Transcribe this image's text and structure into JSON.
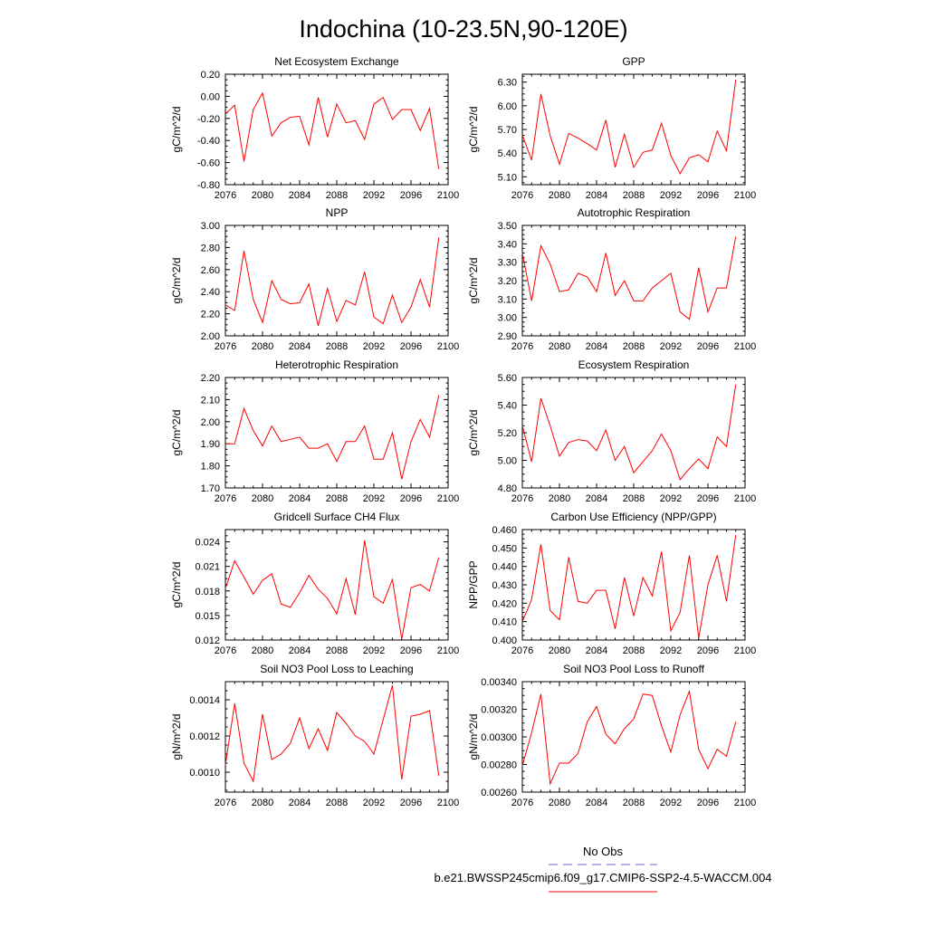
{
  "title": "Indochina (10-23.5N,90-120E)",
  "colors": {
    "series": "#ff0000",
    "obs": "#6666cc",
    "axis": "#000000"
  },
  "legend": {
    "obs_label": "No Obs",
    "model_label": "b.e21.BWSSP245cmip6.f09_g17.CMIP6-SSP2-4.5-WACCM.004"
  },
  "chart_data": [
    {
      "type": "line",
      "title": "Net Ecosystem Exchange",
      "ylabel": "gC/m^2/d",
      "xlim": [
        2076,
        2100
      ],
      "ylim": [
        -0.8,
        0.2
      ],
      "xticks": [
        2076,
        2080,
        2084,
        2088,
        2092,
        2096,
        2100
      ],
      "xtick_labels": [
        "2076",
        "2080",
        "2084",
        "2088",
        "2092",
        "2096",
        "2100"
      ],
      "yticks": [
        -0.8,
        -0.6,
        -0.4,
        -0.2,
        0.0,
        0.2
      ],
      "ytick_labels": [
        "-0.80",
        "-0.60",
        "-0.40",
        "-0.20",
        "0.00",
        "0.20"
      ],
      "x": [
        2076,
        2077,
        2078,
        2079,
        2080,
        2081,
        2082,
        2083,
        2084,
        2085,
        2086,
        2087,
        2088,
        2089,
        2090,
        2091,
        2092,
        2093,
        2094,
        2095,
        2096,
        2097,
        2098,
        2099
      ],
      "y": [
        -0.16,
        -0.08,
        -0.59,
        -0.12,
        0.03,
        -0.36,
        -0.24,
        -0.19,
        -0.18,
        -0.44,
        -0.01,
        -0.37,
        -0.07,
        -0.24,
        -0.22,
        -0.39,
        -0.07,
        -0.01,
        -0.21,
        -0.12,
        -0.12,
        -0.31,
        -0.11,
        -0.66
      ]
    },
    {
      "type": "line",
      "title": "GPP",
      "ylabel": "gC/m^2/d",
      "xlim": [
        2076,
        2100
      ],
      "ylim": [
        5.0,
        6.4
      ],
      "xticks": [
        2076,
        2080,
        2084,
        2088,
        2092,
        2096,
        2100
      ],
      "xtick_labels": [
        "2076",
        "2080",
        "2084",
        "2088",
        "2092",
        "2096",
        "2100"
      ],
      "yticks": [
        5.1,
        5.4,
        5.7,
        6.0,
        6.3
      ],
      "ytick_labels": [
        "5.10",
        "5.40",
        "5.70",
        "6.00",
        "6.30"
      ],
      "x": [
        2076,
        2077,
        2078,
        2079,
        2080,
        2081,
        2082,
        2083,
        2084,
        2085,
        2086,
        2087,
        2088,
        2089,
        2090,
        2091,
        2092,
        2093,
        2094,
        2095,
        2096,
        2097,
        2098,
        2099
      ],
      "y": [
        5.63,
        5.31,
        6.15,
        5.62,
        5.26,
        5.65,
        5.59,
        5.52,
        5.44,
        5.82,
        5.22,
        5.64,
        5.22,
        5.41,
        5.44,
        5.78,
        5.37,
        5.14,
        5.34,
        5.38,
        5.29,
        5.68,
        5.43,
        6.33
      ]
    },
    {
      "type": "line",
      "title": "NPP",
      "ylabel": "gC/m^2/d",
      "xlim": [
        2076,
        2100
      ],
      "ylim": [
        2.0,
        3.0
      ],
      "xticks": [
        2076,
        2080,
        2084,
        2088,
        2092,
        2096,
        2100
      ],
      "xtick_labels": [
        "2076",
        "2080",
        "2084",
        "2088",
        "2092",
        "2096",
        "2100"
      ],
      "yticks": [
        2.0,
        2.2,
        2.4,
        2.6,
        2.8,
        3.0
      ],
      "ytick_labels": [
        "2.00",
        "2.20",
        "2.40",
        "2.60",
        "2.80",
        "3.00"
      ],
      "x": [
        2076,
        2077,
        2078,
        2079,
        2080,
        2081,
        2082,
        2083,
        2084,
        2085,
        2086,
        2087,
        2088,
        2089,
        2090,
        2091,
        2092,
        2093,
        2094,
        2095,
        2096,
        2097,
        2098,
        2099
      ],
      "y": [
        2.28,
        2.23,
        2.77,
        2.33,
        2.12,
        2.5,
        2.33,
        2.29,
        2.3,
        2.47,
        2.09,
        2.43,
        2.13,
        2.32,
        2.28,
        2.58,
        2.17,
        2.11,
        2.37,
        2.12,
        2.26,
        2.51,
        2.26,
        2.89
      ]
    },
    {
      "type": "line",
      "title": "Autotrophic Respiration",
      "ylabel": "gC/m^2/d",
      "xlim": [
        2076,
        2100
      ],
      "ylim": [
        2.9,
        3.5
      ],
      "xticks": [
        2076,
        2080,
        2084,
        2088,
        2092,
        2096,
        2100
      ],
      "xtick_labels": [
        "2076",
        "2080",
        "2084",
        "2088",
        "2092",
        "2096",
        "2100"
      ],
      "yticks": [
        2.9,
        3.0,
        3.1,
        3.2,
        3.3,
        3.4,
        3.5
      ],
      "ytick_labels": [
        "2.90",
        "3.00",
        "3.10",
        "3.20",
        "3.30",
        "3.40",
        "3.50"
      ],
      "x": [
        2076,
        2077,
        2078,
        2079,
        2080,
        2081,
        2082,
        2083,
        2084,
        2085,
        2086,
        2087,
        2088,
        2089,
        2090,
        2091,
        2092,
        2093,
        2094,
        2095,
        2096,
        2097,
        2098,
        2099
      ],
      "y": [
        3.35,
        3.09,
        3.39,
        3.29,
        3.14,
        3.15,
        3.24,
        3.22,
        3.14,
        3.35,
        3.12,
        3.2,
        3.09,
        3.09,
        3.16,
        3.2,
        3.24,
        3.03,
        2.99,
        3.27,
        3.03,
        3.16,
        3.16,
        3.44
      ]
    },
    {
      "type": "line",
      "title": "Heterotrophic Respiration",
      "ylabel": "gC/m^2/d",
      "xlim": [
        2076,
        2100
      ],
      "ylim": [
        1.7,
        2.2
      ],
      "xticks": [
        2076,
        2080,
        2084,
        2088,
        2092,
        2096,
        2100
      ],
      "xtick_labels": [
        "2076",
        "2080",
        "2084",
        "2088",
        "2092",
        "2096",
        "2100"
      ],
      "yticks": [
        1.7,
        1.8,
        1.9,
        2.0,
        2.1,
        2.2
      ],
      "ytick_labels": [
        "1.70",
        "1.80",
        "1.90",
        "2.00",
        "2.10",
        "2.20"
      ],
      "x": [
        2076,
        2077,
        2078,
        2079,
        2080,
        2081,
        2082,
        2083,
        2084,
        2085,
        2086,
        2087,
        2088,
        2089,
        2090,
        2091,
        2092,
        2093,
        2094,
        2095,
        2096,
        2097,
        2098,
        2099
      ],
      "y": [
        1.9,
        1.9,
        2.06,
        1.96,
        1.89,
        1.98,
        1.91,
        1.92,
        1.93,
        1.88,
        1.88,
        1.9,
        1.82,
        1.91,
        1.91,
        1.98,
        1.83,
        1.83,
        1.95,
        1.74,
        1.91,
        2.01,
        1.93,
        2.12
      ]
    },
    {
      "type": "line",
      "title": "Ecosystem Respiration",
      "ylabel": "gC/m^2/d",
      "xlim": [
        2076,
        2100
      ],
      "ylim": [
        4.8,
        5.6
      ],
      "xticks": [
        2076,
        2080,
        2084,
        2088,
        2092,
        2096,
        2100
      ],
      "xtick_labels": [
        "2076",
        "2080",
        "2084",
        "2088",
        "2092",
        "2096",
        "2100"
      ],
      "yticks": [
        4.8,
        5.0,
        5.2,
        5.4,
        5.6
      ],
      "ytick_labels": [
        "4.80",
        "5.00",
        "5.20",
        "5.40",
        "5.60"
      ],
      "x": [
        2076,
        2077,
        2078,
        2079,
        2080,
        2081,
        2082,
        2083,
        2084,
        2085,
        2086,
        2087,
        2088,
        2089,
        2090,
        2091,
        2092,
        2093,
        2094,
        2095,
        2096,
        2097,
        2098,
        2099
      ],
      "y": [
        5.25,
        4.99,
        5.45,
        5.25,
        5.03,
        5.13,
        5.15,
        5.14,
        5.07,
        5.22,
        5.0,
        5.1,
        4.91,
        4.99,
        5.07,
        5.19,
        5.07,
        4.86,
        4.94,
        5.01,
        4.94,
        5.17,
        5.1,
        5.55
      ]
    },
    {
      "type": "line",
      "title": "Gridcell Surface CH4 Flux",
      "ylabel": "gC/m^2/d",
      "xlim": [
        2076,
        2100
      ],
      "ylim": [
        0.012,
        0.0255
      ],
      "xticks": [
        2076,
        2080,
        2084,
        2088,
        2092,
        2096,
        2100
      ],
      "xtick_labels": [
        "2076",
        "2080",
        "2084",
        "2088",
        "2092",
        "2096",
        "2100"
      ],
      "yticks": [
        0.012,
        0.015,
        0.018,
        0.021,
        0.024
      ],
      "ytick_labels": [
        "0.012",
        "0.015",
        "0.018",
        "0.021",
        "0.024"
      ],
      "x": [
        2076,
        2077,
        2078,
        2079,
        2080,
        2081,
        2082,
        2083,
        2084,
        2085,
        2086,
        2087,
        2088,
        2089,
        2090,
        2091,
        2092,
        2093,
        2094,
        2095,
        2096,
        2097,
        2098,
        2099
      ],
      "y": [
        0.0183,
        0.0217,
        0.0197,
        0.0176,
        0.0193,
        0.0201,
        0.0164,
        0.016,
        0.0178,
        0.0199,
        0.0182,
        0.0171,
        0.0152,
        0.0195,
        0.0151,
        0.0242,
        0.0173,
        0.0165,
        0.0194,
        0.0121,
        0.0184,
        0.0188,
        0.018,
        0.0221
      ]
    },
    {
      "type": "line",
      "title": "Carbon Use Efficiency (NPP/GPP)",
      "ylabel": "NPP/GPP",
      "xlim": [
        2076,
        2100
      ],
      "ylim": [
        0.4,
        0.46
      ],
      "xticks": [
        2076,
        2080,
        2084,
        2088,
        2092,
        2096,
        2100
      ],
      "xtick_labels": [
        "2076",
        "2080",
        "2084",
        "2088",
        "2092",
        "2096",
        "2100"
      ],
      "yticks": [
        0.4,
        0.41,
        0.42,
        0.43,
        0.44,
        0.45,
        0.46
      ],
      "ytick_labels": [
        "0.400",
        "0.410",
        "0.420",
        "0.430",
        "0.440",
        "0.450",
        "0.460"
      ],
      "x": [
        2076,
        2077,
        2078,
        2079,
        2080,
        2081,
        2082,
        2083,
        2084,
        2085,
        2086,
        2087,
        2088,
        2089,
        2090,
        2091,
        2092,
        2093,
        2094,
        2095,
        2096,
        2097,
        2098,
        2099
      ],
      "y": [
        0.41,
        0.422,
        0.452,
        0.416,
        0.411,
        0.445,
        0.421,
        0.42,
        0.427,
        0.427,
        0.406,
        0.434,
        0.413,
        0.434,
        0.424,
        0.448,
        0.405,
        0.415,
        0.446,
        0.401,
        0.43,
        0.446,
        0.421,
        0.457
      ]
    },
    {
      "type": "line",
      "title": "Soil NO3 Pool Loss to Leaching",
      "ylabel": "gN/m^2/d",
      "xlim": [
        2076,
        2100
      ],
      "ylim": [
        0.00089,
        0.0015
      ],
      "xticks": [
        2076,
        2080,
        2084,
        2088,
        2092,
        2096,
        2100
      ],
      "xtick_labels": [
        "2076",
        "2080",
        "2084",
        "2088",
        "2092",
        "2096",
        "2100"
      ],
      "yticks": [
        0.001,
        0.0012,
        0.0014
      ],
      "ytick_labels": [
        "0.0010",
        "0.0012",
        "0.0014"
      ],
      "x": [
        2076,
        2077,
        2078,
        2079,
        2080,
        2081,
        2082,
        2083,
        2084,
        2085,
        2086,
        2087,
        2088,
        2089,
        2090,
        2091,
        2092,
        2093,
        2094,
        2095,
        2096,
        2097,
        2098,
        2099
      ],
      "y": [
        0.00104,
        0.00138,
        0.00105,
        0.00095,
        0.00132,
        0.00107,
        0.0011,
        0.00116,
        0.0013,
        0.00113,
        0.00124,
        0.00112,
        0.00133,
        0.00127,
        0.0012,
        0.00117,
        0.0011,
        0.00129,
        0.00148,
        0.00096,
        0.00131,
        0.00132,
        0.00134,
        0.00098
      ]
    },
    {
      "type": "line",
      "title": "Soil NO3 Pool Loss to Runoff",
      "ylabel": "gN/m^2/d",
      "xlim": [
        2076,
        2100
      ],
      "ylim": [
        0.0026,
        0.0034
      ],
      "xticks": [
        2076,
        2080,
        2084,
        2088,
        2092,
        2096,
        2100
      ],
      "xtick_labels": [
        "2076",
        "2080",
        "2084",
        "2088",
        "2092",
        "2096",
        "2100"
      ],
      "yticks": [
        0.0026,
        0.0028,
        0.003,
        0.0032,
        0.0034
      ],
      "ytick_labels": [
        "0.00260",
        "0.00280",
        "0.00300",
        "0.00320",
        "0.00340"
      ],
      "x": [
        2076,
        2077,
        2078,
        2079,
        2080,
        2081,
        2082,
        2083,
        2084,
        2085,
        2086,
        2087,
        2088,
        2089,
        2090,
        2091,
        2092,
        2093,
        2094,
        2095,
        2096,
        2097,
        2098,
        2099
      ],
      "y": [
        0.00279,
        0.00303,
        0.00331,
        0.00266,
        0.00281,
        0.00281,
        0.00288,
        0.00311,
        0.00322,
        0.00302,
        0.00295,
        0.00306,
        0.00313,
        0.00331,
        0.0033,
        0.00308,
        0.00289,
        0.00316,
        0.00333,
        0.00291,
        0.00277,
        0.00291,
        0.00286,
        0.00311
      ]
    }
  ]
}
